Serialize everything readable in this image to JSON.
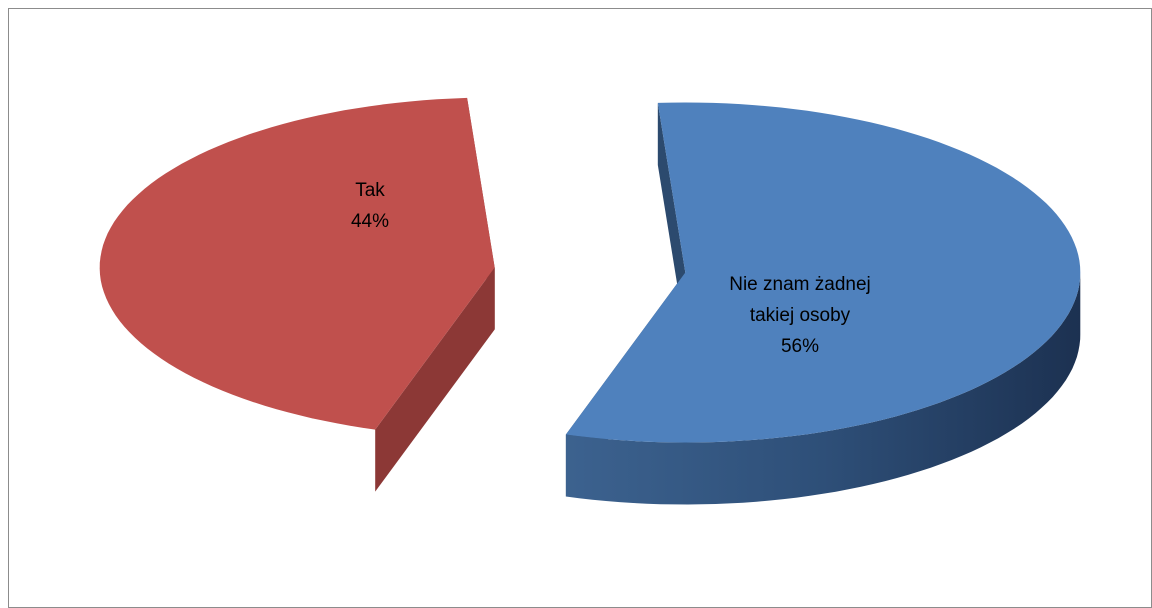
{
  "chart_data": {
    "type": "pie",
    "style": "3d-exploded",
    "title": "",
    "slices": [
      {
        "label_lines": [
          "Tak"
        ],
        "percent_label": "44%",
        "value": 44,
        "color": "#c0504d",
        "side_color": "#8c3836"
      },
      {
        "label_lines": [
          "Nie znam żadnej",
          "takiej osoby"
        ],
        "percent_label": "56%",
        "value": 56,
        "color": "#4f81bd",
        "side_color": "#2c4a6e"
      }
    ]
  }
}
